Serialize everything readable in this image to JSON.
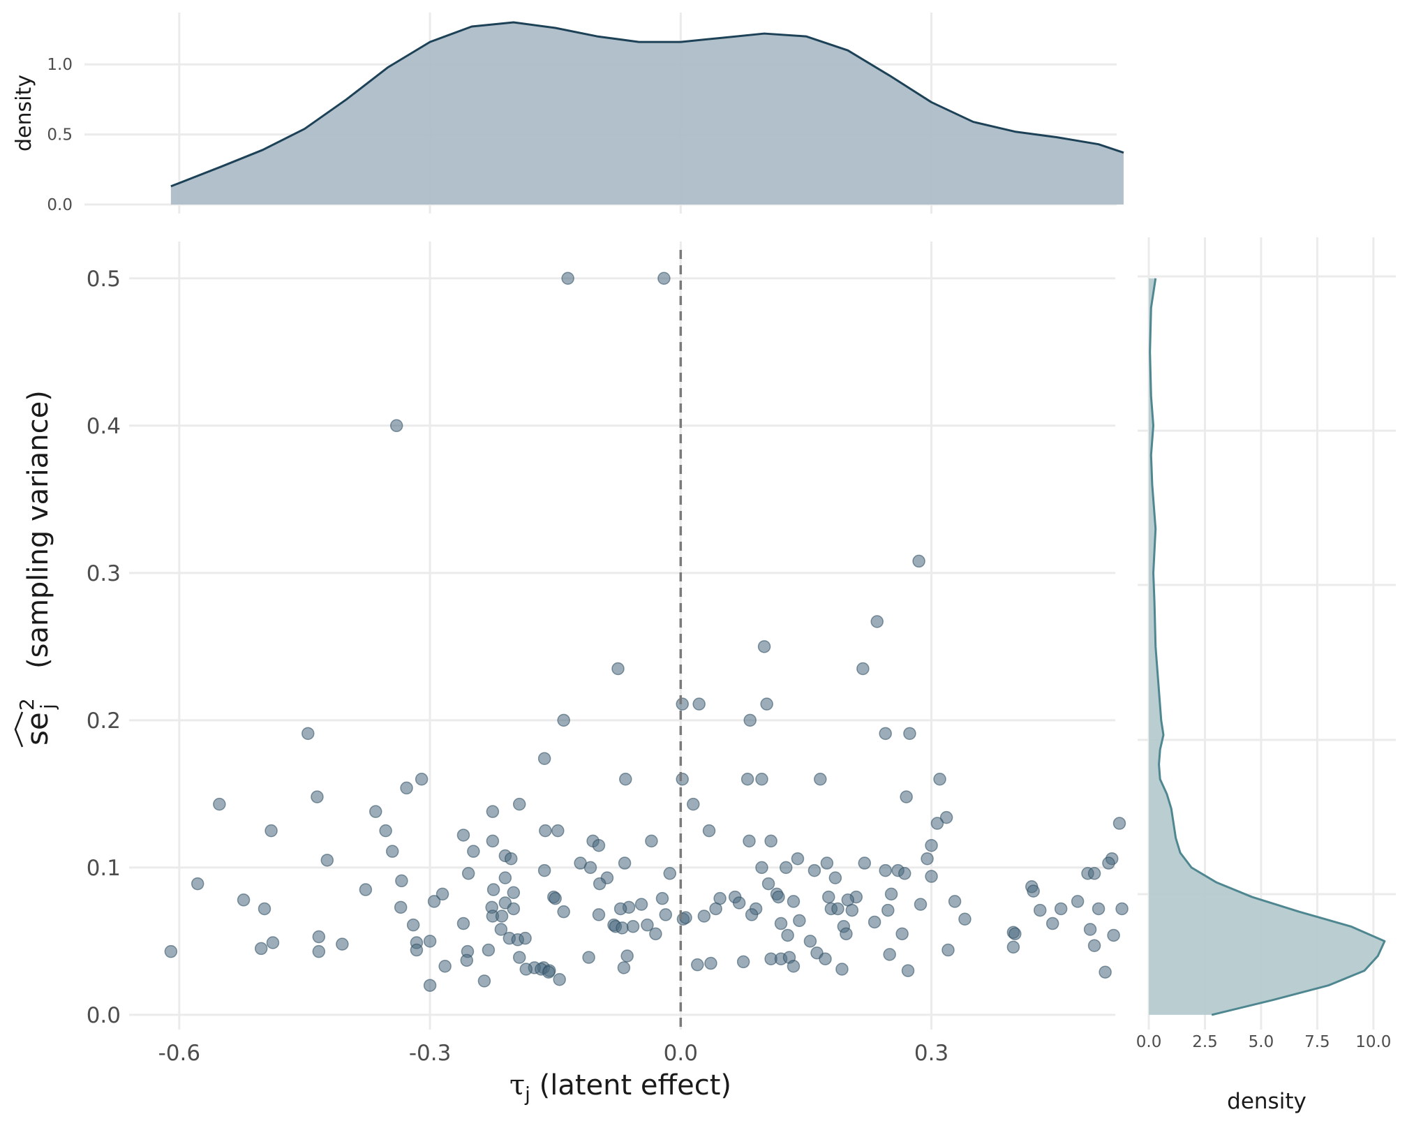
{
  "chart_data": [
    {
      "id": "main-scatter",
      "type": "scatter",
      "xlabel_symbol": "τ",
      "xlabel_sub": "j",
      "xlabel_text": "(latent effect)",
      "ylabel_symbol": "se",
      "ylabel_sup": "2",
      "ylabel_sub": "j",
      "ylabel_text": "(sampling variance)",
      "xlim": [
        -0.66,
        0.52
      ],
      "ylim": [
        -0.01,
        0.525
      ],
      "x_ticks": [
        -0.6,
        -0.3,
        0.0,
        0.3
      ],
      "x_tick_labels": [
        "-0.6",
        "-0.3",
        "0.0",
        "0.3"
      ],
      "y_ticks": [
        0.0,
        0.1,
        0.2,
        0.3,
        0.4,
        0.5
      ],
      "y_tick_labels": [
        "0.0",
        "0.1",
        "0.2",
        "0.3",
        "0.4",
        "0.5"
      ],
      "reference_line_x": 0.0,
      "point_color": "#4a6a80",
      "reference_line_color": "#7a7a7a",
      "grid": true,
      "points": [
        [
          -0.135,
          0.5
        ],
        [
          -0.02,
          0.5
        ],
        [
          -0.34,
          0.4
        ],
        [
          0.285,
          0.308
        ],
        [
          0.235,
          0.267
        ],
        [
          0.1,
          0.25
        ],
        [
          -0.075,
          0.235
        ],
        [
          0.218,
          0.235
        ],
        [
          0.002,
          0.211
        ],
        [
          0.022,
          0.211
        ],
        [
          0.103,
          0.211
        ],
        [
          -0.14,
          0.2
        ],
        [
          0.083,
          0.2
        ],
        [
          -0.446,
          0.191
        ],
        [
          0.245,
          0.191
        ],
        [
          0.274,
          0.191
        ],
        [
          -0.163,
          0.174
        ],
        [
          -0.31,
          0.16
        ],
        [
          -0.066,
          0.16
        ],
        [
          0.002,
          0.16
        ],
        [
          0.08,
          0.16
        ],
        [
          0.097,
          0.16
        ],
        [
          0.167,
          0.16
        ],
        [
          0.31,
          0.16
        ],
        [
          -0.328,
          0.154
        ],
        [
          -0.435,
          0.148
        ],
        [
          0.27,
          0.148
        ],
        [
          -0.552,
          0.143
        ],
        [
          -0.193,
          0.143
        ],
        [
          0.015,
          0.143
        ],
        [
          -0.365,
          0.138
        ],
        [
          -0.225,
          0.138
        ],
        [
          0.318,
          0.134
        ],
        [
          0.307,
          0.13
        ],
        [
          0.525,
          0.13
        ],
        [
          -0.49,
          0.125
        ],
        [
          -0.353,
          0.125
        ],
        [
          -0.162,
          0.125
        ],
        [
          -0.147,
          0.125
        ],
        [
          0.034,
          0.125
        ],
        [
          -0.26,
          0.122
        ],
        [
          -0.225,
          0.118
        ],
        [
          -0.105,
          0.118
        ],
        [
          -0.035,
          0.118
        ],
        [
          0.082,
          0.118
        ],
        [
          0.108,
          0.118
        ],
        [
          -0.098,
          0.115
        ],
        [
          0.3,
          0.115
        ],
        [
          -0.345,
          0.111
        ],
        [
          -0.248,
          0.111
        ],
        [
          -0.21,
          0.108
        ],
        [
          -0.203,
          0.106
        ],
        [
          0.14,
          0.106
        ],
        [
          0.295,
          0.106
        ],
        [
          0.516,
          0.106
        ],
        [
          -0.423,
          0.105
        ],
        [
          0.512,
          0.103
        ],
        [
          -0.12,
          0.103
        ],
        [
          -0.067,
          0.103
        ],
        [
          0.175,
          0.103
        ],
        [
          0.22,
          0.103
        ],
        [
          -0.108,
          0.1
        ],
        [
          0.097,
          0.1
        ],
        [
          0.126,
          0.1
        ],
        [
          0.16,
          0.098
        ],
        [
          0.245,
          0.098
        ],
        [
          0.26,
          0.098
        ],
        [
          -0.163,
          0.098
        ],
        [
          -0.013,
          0.096
        ],
        [
          0.268,
          0.096
        ],
        [
          0.487,
          0.096
        ],
        [
          0.495,
          0.096
        ],
        [
          -0.254,
          0.096
        ],
        [
          0.3,
          0.094
        ],
        [
          -0.334,
          0.091
        ],
        [
          -0.21,
          0.093
        ],
        [
          -0.088,
          0.093
        ],
        [
          0.185,
          0.093
        ],
        [
          -0.578,
          0.089
        ],
        [
          -0.097,
          0.089
        ],
        [
          0.105,
          0.089
        ],
        [
          0.42,
          0.087
        ],
        [
          -0.377,
          0.085
        ],
        [
          -0.224,
          0.085
        ],
        [
          0.422,
          0.084
        ],
        [
          -0.2,
          0.083
        ],
        [
          -0.285,
          0.082
        ],
        [
          0.115,
          0.082
        ],
        [
          0.252,
          0.082
        ],
        [
          -0.152,
          0.08
        ],
        [
          0.065,
          0.08
        ],
        [
          0.177,
          0.08
        ],
        [
          0.21,
          0.08
        ],
        [
          -0.15,
          0.079
        ],
        [
          0.047,
          0.079
        ],
        [
          0.117,
          0.08
        ],
        [
          -0.523,
          0.078
        ],
        [
          0.2,
          0.078
        ],
        [
          -0.295,
          0.077
        ],
        [
          -0.022,
          0.079
        ],
        [
          0.135,
          0.077
        ],
        [
          0.328,
          0.077
        ],
        [
          0.475,
          0.077
        ],
        [
          -0.047,
          0.075
        ],
        [
          -0.21,
          0.076
        ],
        [
          0.07,
          0.076
        ],
        [
          -0.498,
          0.072
        ],
        [
          -0.226,
          0.073
        ],
        [
          -0.335,
          0.073
        ],
        [
          -0.062,
          0.073
        ],
        [
          -0.072,
          0.072
        ],
        [
          -0.2,
          0.072
        ],
        [
          0.042,
          0.072
        ],
        [
          0.09,
          0.072
        ],
        [
          0.18,
          0.072
        ],
        [
          0.188,
          0.072
        ],
        [
          0.205,
          0.071
        ],
        [
          0.248,
          0.071
        ],
        [
          0.287,
          0.075
        ],
        [
          0.43,
          0.071
        ],
        [
          0.455,
          0.072
        ],
        [
          0.5,
          0.072
        ],
        [
          0.528,
          0.072
        ],
        [
          -0.14,
          0.07
        ],
        [
          -0.018,
          0.068
        ],
        [
          -0.098,
          0.068
        ],
        [
          0.028,
          0.067
        ],
        [
          0.085,
          0.068
        ],
        [
          -0.225,
          0.067
        ],
        [
          -0.214,
          0.067
        ],
        [
          0.003,
          0.065
        ],
        [
          0.006,
          0.066
        ],
        [
          0.232,
          0.063
        ],
        [
          0.12,
          0.062
        ],
        [
          0.142,
          0.064
        ],
        [
          0.34,
          0.065
        ],
        [
          -0.32,
          0.061
        ],
        [
          -0.26,
          0.062
        ],
        [
          -0.08,
          0.061
        ],
        [
          -0.078,
          0.06
        ],
        [
          -0.07,
          0.059
        ],
        [
          -0.057,
          0.06
        ],
        [
          -0.04,
          0.061
        ],
        [
          0.445,
          0.062
        ],
        [
          -0.215,
          0.058
        ],
        [
          0.195,
          0.06
        ],
        [
          -0.03,
          0.055
        ],
        [
          -0.205,
          0.052
        ],
        [
          0.128,
          0.054
        ],
        [
          0.198,
          0.055
        ],
        [
          0.265,
          0.055
        ],
        [
          0.398,
          0.056
        ],
        [
          0.4,
          0.055
        ],
        [
          0.49,
          0.058
        ],
        [
          0.518,
          0.054
        ],
        [
          -0.433,
          0.053
        ],
        [
          -0.3,
          0.05
        ],
        [
          -0.316,
          0.049
        ],
        [
          -0.195,
          0.051
        ],
        [
          -0.186,
          0.052
        ],
        [
          0.155,
          0.05
        ],
        [
          -0.488,
          0.049
        ],
        [
          -0.405,
          0.048
        ],
        [
          -0.502,
          0.045
        ],
        [
          0.495,
          0.047
        ],
        [
          0.398,
          0.046
        ],
        [
          -0.61,
          0.043
        ],
        [
          -0.433,
          0.043
        ],
        [
          -0.316,
          0.044
        ],
        [
          -0.23,
          0.044
        ],
        [
          -0.255,
          0.043
        ],
        [
          0.32,
          0.044
        ],
        [
          0.163,
          0.042
        ],
        [
          0.25,
          0.041
        ],
        [
          -0.064,
          0.04
        ],
        [
          -0.193,
          0.039
        ],
        [
          -0.11,
          0.039
        ],
        [
          0.108,
          0.038
        ],
        [
          0.12,
          0.038
        ],
        [
          0.13,
          0.039
        ],
        [
          0.173,
          0.038
        ],
        [
          -0.256,
          0.037
        ],
        [
          0.075,
          0.036
        ],
        [
          0.036,
          0.035
        ],
        [
          0.02,
          0.034
        ],
        [
          -0.164,
          0.032
        ],
        [
          -0.175,
          0.032
        ],
        [
          -0.185,
          0.031
        ],
        [
          -0.167,
          0.031
        ],
        [
          -0.157,
          0.03
        ],
        [
          -0.158,
          0.029
        ],
        [
          -0.068,
          0.032
        ],
        [
          -0.282,
          0.033
        ],
        [
          0.135,
          0.033
        ],
        [
          0.193,
          0.031
        ],
        [
          0.272,
          0.03
        ],
        [
          0.508,
          0.029
        ],
        [
          -0.145,
          0.024
        ],
        [
          -0.235,
          0.023
        ],
        [
          -0.3,
          0.02
        ]
      ]
    },
    {
      "id": "top-density",
      "type": "area",
      "ylabel": "density",
      "xlim": [
        -0.66,
        0.52
      ],
      "ylim": [
        0,
        1.3
      ],
      "y_ticks": [
        0.0,
        0.5,
        1.0
      ],
      "y_tick_labels": [
        "0.0",
        "0.5",
        "1.0"
      ],
      "fill_color": "#adbdc7",
      "line_color": "#1d4257",
      "grid": true,
      "x": [
        -0.61,
        -0.55,
        -0.5,
        -0.45,
        -0.4,
        -0.35,
        -0.3,
        -0.25,
        -0.2,
        -0.15,
        -0.1,
        -0.05,
        0.0,
        0.05,
        0.1,
        0.15,
        0.2,
        0.25,
        0.3,
        0.35,
        0.4,
        0.45,
        0.5,
        0.53
      ],
      "y": [
        0.13,
        0.27,
        0.39,
        0.54,
        0.75,
        0.98,
        1.16,
        1.27,
        1.3,
        1.26,
        1.2,
        1.16,
        1.16,
        1.19,
        1.22,
        1.2,
        1.1,
        0.92,
        0.73,
        0.59,
        0.52,
        0.48,
        0.43,
        0.37
      ]
    },
    {
      "id": "right-density",
      "type": "area",
      "xlabel": "density",
      "xlim": [
        -0.5,
        11
      ],
      "x_ticks": [
        0.0,
        2.5,
        5.0,
        7.5,
        10.0
      ],
      "x_tick_labels": [
        "0.0",
        "2.5",
        "5.0",
        "7.5",
        "10.0"
      ],
      "ylim": [
        -0.01,
        0.525
      ],
      "fill_color": "#b6cbd0",
      "line_color": "#4f8791",
      "grid": true,
      "y": [
        0.0,
        0.01,
        0.02,
        0.03,
        0.04,
        0.05,
        0.06,
        0.07,
        0.08,
        0.09,
        0.1,
        0.11,
        0.12,
        0.13,
        0.14,
        0.15,
        0.16,
        0.17,
        0.18,
        0.19,
        0.2,
        0.22,
        0.25,
        0.28,
        0.3,
        0.33,
        0.36,
        0.38,
        0.4,
        0.42,
        0.45,
        0.48,
        0.5
      ],
      "density": [
        2.8,
        5.5,
        8.0,
        9.6,
        10.2,
        10.5,
        9.0,
        6.7,
        4.6,
        3.0,
        1.9,
        1.4,
        1.2,
        1.1,
        1.0,
        0.8,
        0.5,
        0.45,
        0.5,
        0.65,
        0.55,
        0.45,
        0.3,
        0.25,
        0.2,
        0.3,
        0.15,
        0.1,
        0.2,
        0.1,
        0.05,
        0.1,
        0.3
      ]
    }
  ]
}
